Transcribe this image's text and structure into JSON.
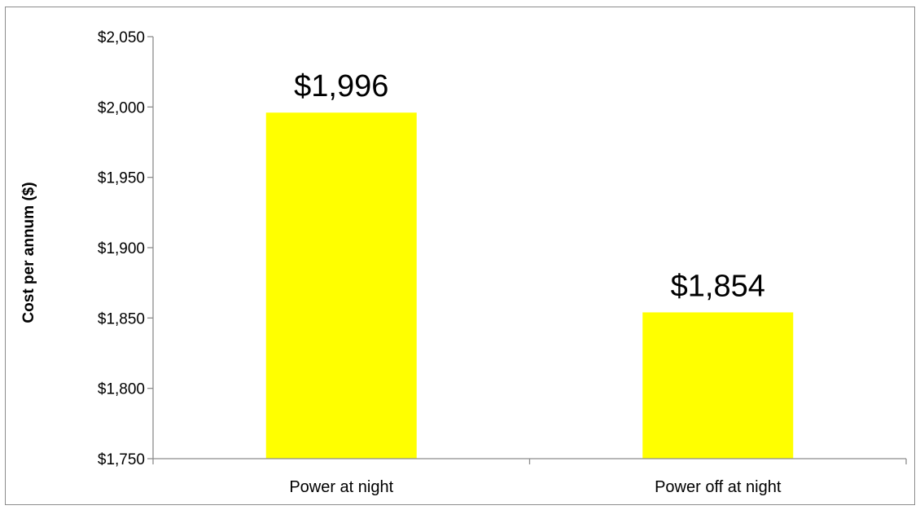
{
  "chart_data": {
    "type": "bar",
    "categories": [
      "Power at night",
      "Power off at night"
    ],
    "values": [
      1996,
      1854
    ],
    "data_labels": [
      "$1,996",
      "$1,854"
    ],
    "title": "",
    "xlabel": "",
    "ylabel": "Cost per annum ($)",
    "ylim": [
      1750,
      2050
    ],
    "yticks": [
      1750,
      1800,
      1850,
      1900,
      1950,
      2000,
      2050
    ],
    "ytick_labels": [
      "$1,750",
      "$1,800",
      "$1,850",
      "$1,900",
      "$1,950",
      "$2,000",
      "$2,050"
    ],
    "grid": false,
    "legend": "none",
    "bar_color": "#FFFF00",
    "axis_color": "#8C8C8C"
  }
}
